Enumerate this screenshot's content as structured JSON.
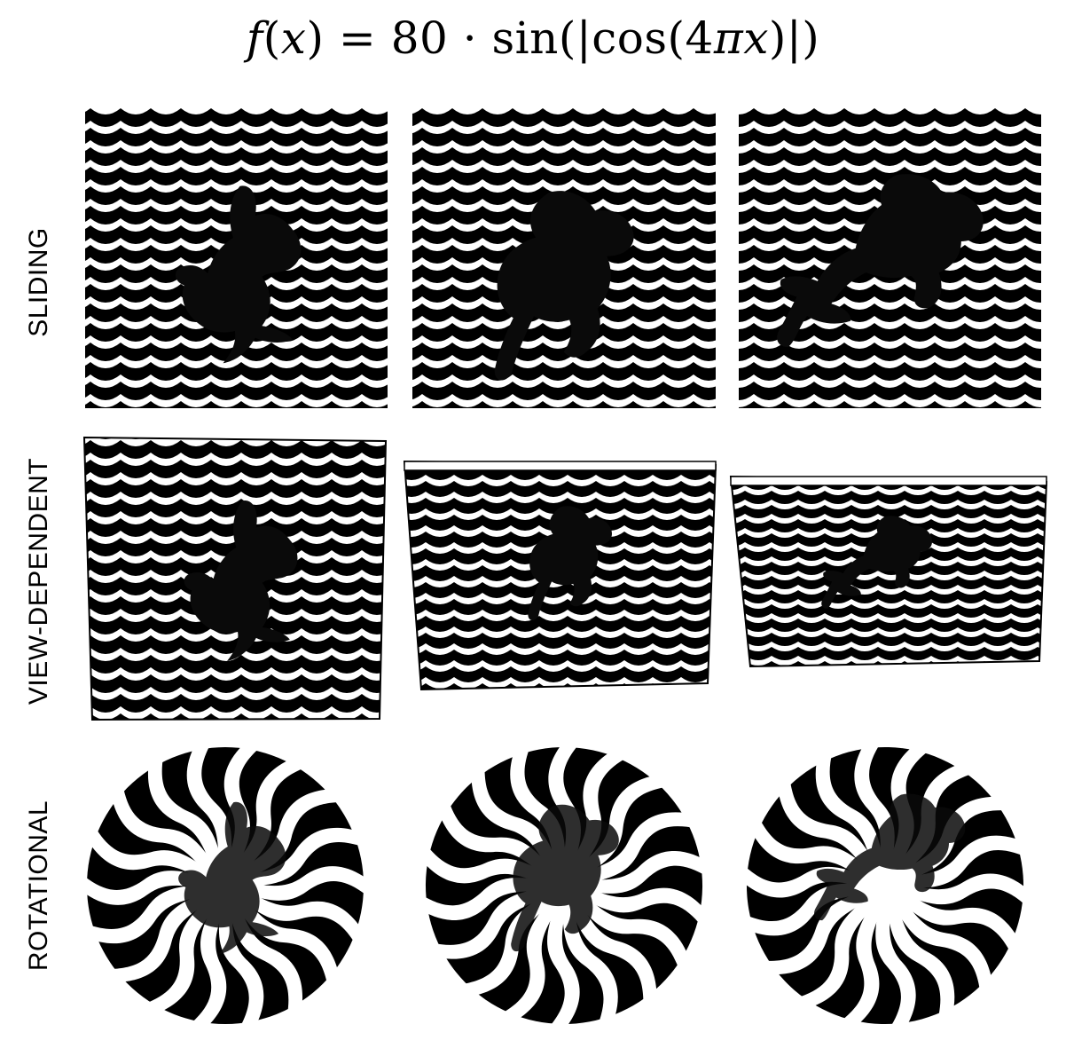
{
  "formula": {
    "lhs": "f",
    "arg": "x",
    "equals": " = ",
    "coefficient": "80",
    "dot": " · ",
    "sin": "sin",
    "open_abs": "(|",
    "cos": "cos",
    "inner_open": "(4",
    "pi": "π",
    "inner_var": "x",
    "close": ")|)"
  },
  "rows": [
    {
      "label": "SLIDING",
      "panel_type": "square",
      "count": 3
    },
    {
      "label": "VIEW-DEPENDENT",
      "panel_type": "tilted-square",
      "count": 3
    },
    {
      "label": "ROTATIONAL",
      "panel_type": "disc",
      "count": 3
    }
  ],
  "colors": {
    "ink": "#000000",
    "paper": "#ffffff",
    "silhouette": "#0a0a0a"
  },
  "subject": "running-rabbit-silhouette"
}
